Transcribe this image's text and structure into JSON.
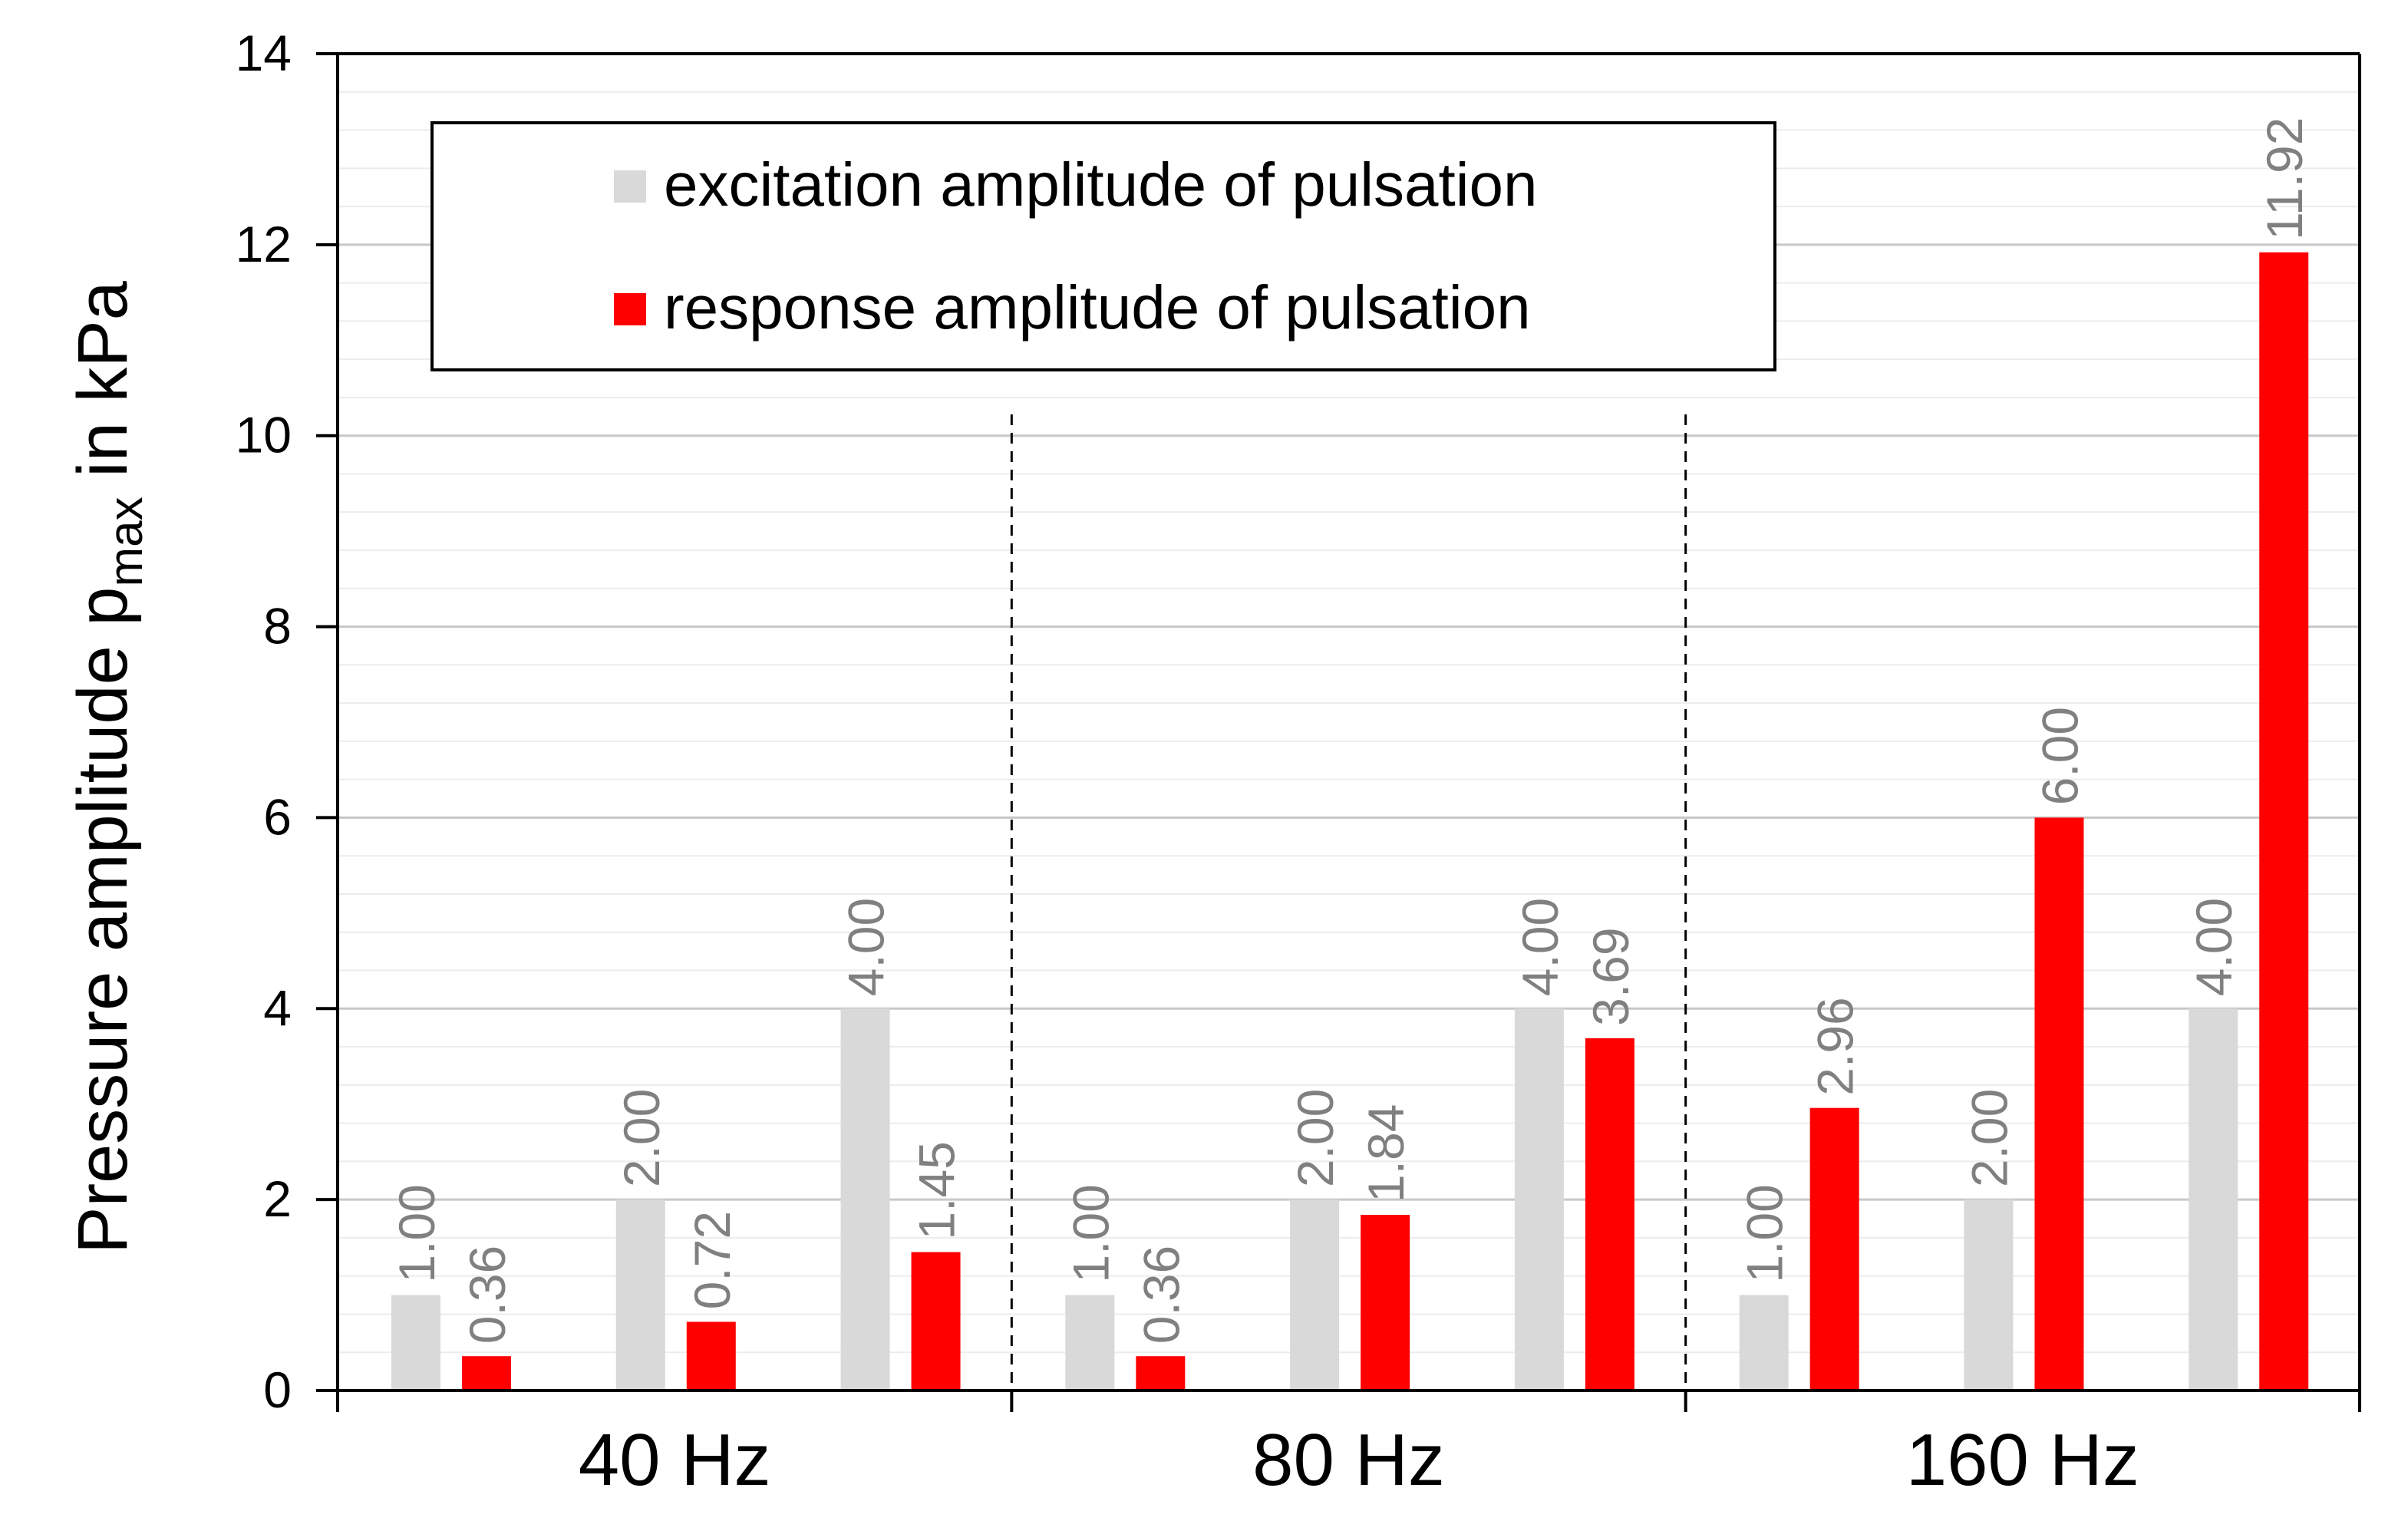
{
  "chart_data": {
    "type": "bar",
    "title": "",
    "xlabel": "",
    "ylabel": {
      "prefix": "Pressure amplitude p",
      "subscript": "max",
      "suffix": " in kPa"
    },
    "ylim": [
      0,
      14
    ],
    "y_major_ticks": [
      0,
      2,
      4,
      6,
      8,
      10,
      12,
      14
    ],
    "y_minor_step": 0.4,
    "grid": true,
    "legend_position": "top-left",
    "groups": [
      {
        "label": "40 Hz",
        "pairs": [
          {
            "excitation": 1.0,
            "response": 0.36,
            "exc_label": "1.00",
            "resp_label": "0.36"
          },
          {
            "excitation": 2.0,
            "response": 0.72,
            "exc_label": "2.00",
            "resp_label": "0.72"
          },
          {
            "excitation": 4.0,
            "response": 1.45,
            "exc_label": "4.00",
            "resp_label": "1.45"
          }
        ]
      },
      {
        "label": "80 Hz",
        "pairs": [
          {
            "excitation": 1.0,
            "response": 0.36,
            "exc_label": "1.00",
            "resp_label": "0.36"
          },
          {
            "excitation": 2.0,
            "response": 1.84,
            "exc_label": "2.00",
            "resp_label": "1.84"
          },
          {
            "excitation": 4.0,
            "response": 3.69,
            "exc_label": "4.00",
            "resp_label": "3.69"
          }
        ]
      },
      {
        "label": "160 Hz",
        "pairs": [
          {
            "excitation": 1.0,
            "response": 2.96,
            "exc_label": "1.00",
            "resp_label": "2.96"
          },
          {
            "excitation": 2.0,
            "response": 6.0,
            "exc_label": "2.00",
            "resp_label": "6.00"
          },
          {
            "excitation": 4.0,
            "response": 11.92,
            "exc_label": "4.00",
            "resp_label": "11.92"
          }
        ]
      }
    ],
    "series": [
      {
        "key": "excitation",
        "name": "excitation amplitude of pulsation",
        "color": "#d9d9d9"
      },
      {
        "key": "response",
        "name": "response amplitude of pulsation",
        "color": "#ff0000"
      }
    ],
    "label_color": "#808080"
  }
}
